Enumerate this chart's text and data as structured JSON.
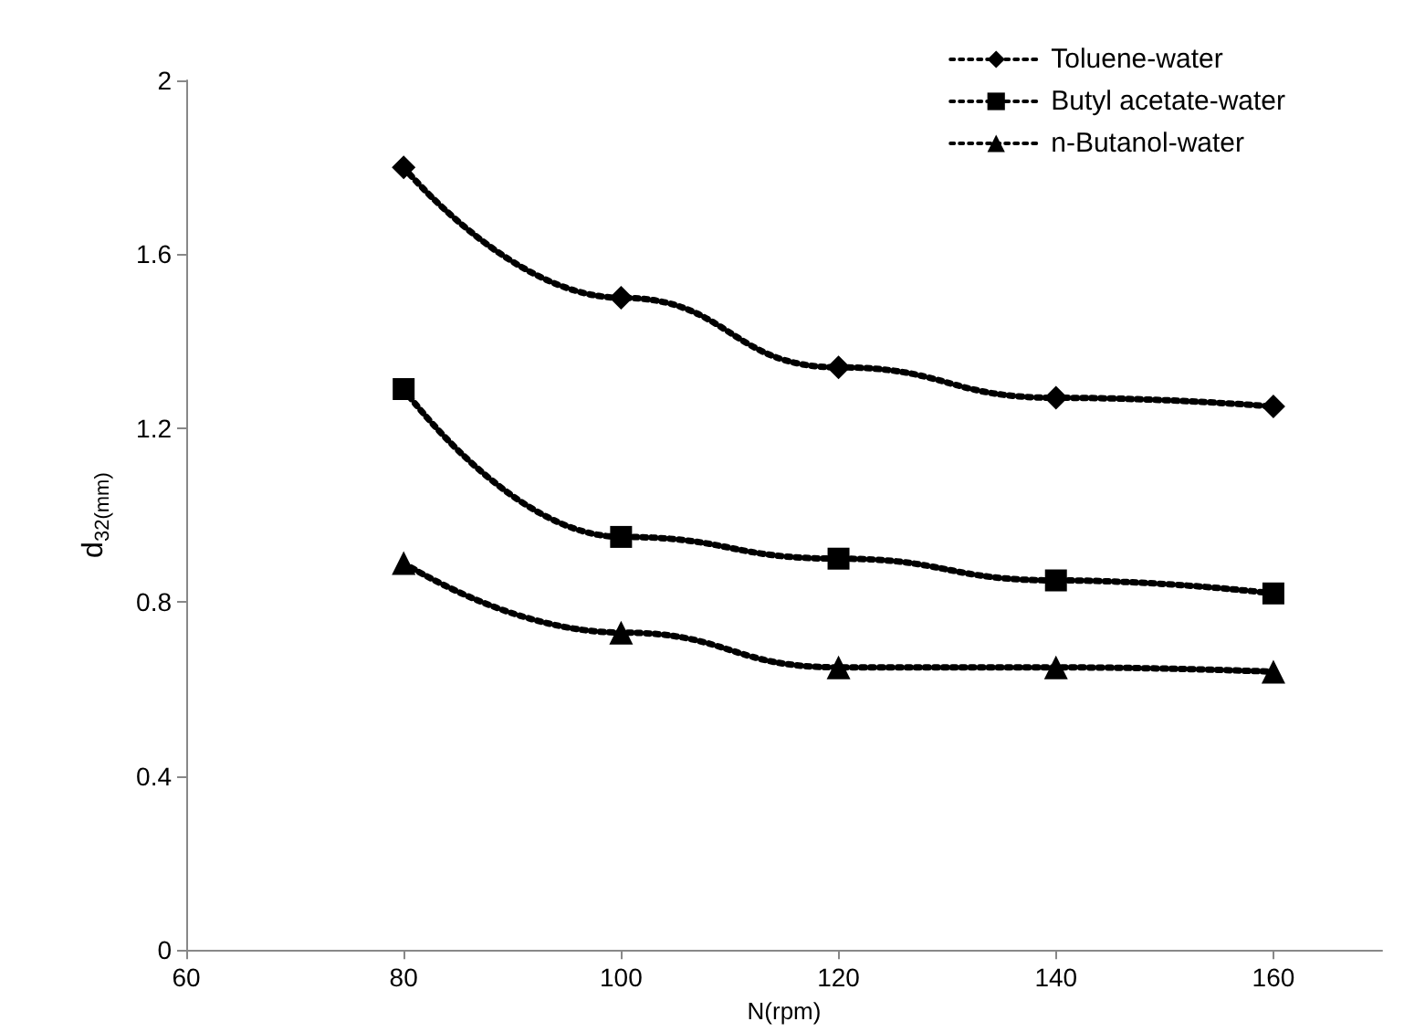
{
  "chart_data": {
    "type": "line",
    "xlabel": "N(rpm)",
    "ylabel": "d$_{32(mm)}$",
    "x": [
      80,
      100,
      120,
      140,
      160
    ],
    "series": [
      {
        "name": "Toluene-water",
        "color": "#000000",
        "marker": "diamond",
        "values": [
          1.8,
          1.5,
          1.34,
          1.27,
          1.25
        ]
      },
      {
        "name": "Butyl acetate-water",
        "color": "#000000",
        "marker": "square",
        "values": [
          1.29,
          0.95,
          0.9,
          0.85,
          0.82
        ]
      },
      {
        "name": "n-Butanol-water",
        "color": "#000000",
        "marker": "triangle",
        "values": [
          0.89,
          0.73,
          0.65,
          0.65,
          0.64
        ]
      }
    ],
    "xlim": [
      60,
      170
    ],
    "xticks": [
      60,
      80,
      100,
      120,
      140,
      160
    ],
    "ylim": [
      0,
      2
    ],
    "yticks": [
      0,
      0.4,
      0.8,
      1.2,
      1.6,
      2
    ],
    "grid": false,
    "legend": "top right",
    "line_style": "dotted"
  }
}
